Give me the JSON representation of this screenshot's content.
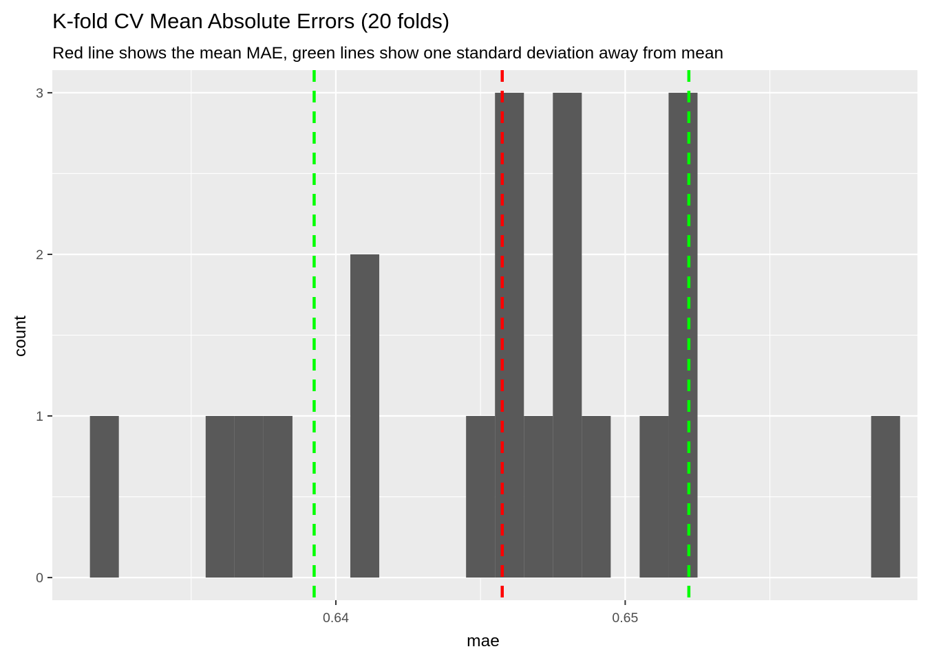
{
  "chart_data": {
    "type": "bar",
    "title": "K-fold CV Mean Absolute Errors (20 folds)",
    "subtitle": "Red line shows the mean MAE, green lines show one standard deviation away from mean",
    "xlabel": "mae",
    "ylabel": "count",
    "xlim": [
      0.6302,
      0.6601
    ],
    "ylim": [
      -0.14,
      3.14
    ],
    "x_ticks": [
      {
        "value": 0.64,
        "label": "0.64"
      },
      {
        "value": 0.65,
        "label": "0.65"
      }
    ],
    "x_minor_ticks": [
      0.635,
      0.645,
      0.655
    ],
    "y_ticks": [
      {
        "value": 0,
        "label": "0"
      },
      {
        "value": 1,
        "label": "1"
      },
      {
        "value": 2,
        "label": "2"
      },
      {
        "value": 3,
        "label": "3"
      }
    ],
    "y_minor_ticks": [
      0.5,
      1.5,
      2.5
    ],
    "bin_width": 0.001,
    "bins": [
      {
        "x0": 0.6315,
        "x1": 0.6325,
        "count": 1
      },
      {
        "x0": 0.6355,
        "x1": 0.6365,
        "count": 1
      },
      {
        "x0": 0.6365,
        "x1": 0.6375,
        "count": 1
      },
      {
        "x0": 0.6375,
        "x1": 0.6385,
        "count": 1
      },
      {
        "x0": 0.6405,
        "x1": 0.6415,
        "count": 2
      },
      {
        "x0": 0.6445,
        "x1": 0.6455,
        "count": 1
      },
      {
        "x0": 0.6455,
        "x1": 0.6465,
        "count": 3
      },
      {
        "x0": 0.6465,
        "x1": 0.6475,
        "count": 1
      },
      {
        "x0": 0.6475,
        "x1": 0.6485,
        "count": 3
      },
      {
        "x0": 0.6485,
        "x1": 0.6495,
        "count": 1
      },
      {
        "x0": 0.6505,
        "x1": 0.6515,
        "count": 1
      },
      {
        "x0": 0.6515,
        "x1": 0.6525,
        "count": 3
      },
      {
        "x0": 0.6585,
        "x1": 0.6595,
        "count": 1
      }
    ],
    "vlines": [
      {
        "x": 0.63925,
        "color": "#00FF00",
        "dash": "dashed"
      },
      {
        "x": 0.64575,
        "color": "#FF0000",
        "dash": "dashed"
      },
      {
        "x": 0.6522,
        "color": "#00FF00",
        "dash": "dashed"
      }
    ],
    "colors": {
      "panel": "#EBEBEB",
      "grid": "#FFFFFF",
      "bar": "#595959",
      "tick_text": "#4D4D4D",
      "title_text": "#000000"
    },
    "grid": true,
    "legend": "none"
  }
}
